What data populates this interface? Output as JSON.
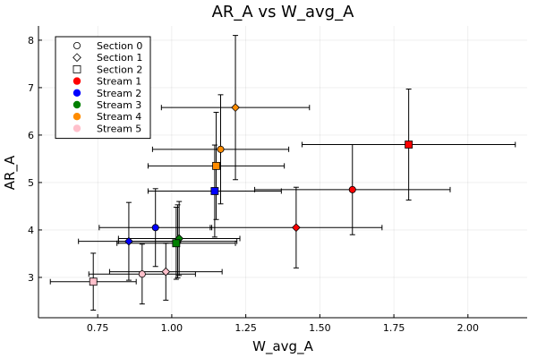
{
  "chart_data": {
    "type": "scatter",
    "title": "AR_A vs W_avg_A",
    "xlabel": "W_avg_A",
    "ylabel": "AR_A",
    "xlim": [
      0.55,
      2.2
    ],
    "ylim": [
      2.15,
      8.3
    ],
    "xticks": [
      0.75,
      1.0,
      1.25,
      1.5,
      1.75,
      2.0
    ],
    "xtick_labels": [
      "0.75",
      "1.00",
      "1.25",
      "1.50",
      "1.75",
      "2.00"
    ],
    "yticks": [
      3,
      4,
      5,
      6,
      7,
      8
    ],
    "ytick_labels": [
      "3",
      "4",
      "5",
      "6",
      "7",
      "8"
    ],
    "grid": true,
    "legend_position": "top-left",
    "legend": [
      {
        "label": "Section 0",
        "kind": "shape",
        "shape": "circle"
      },
      {
        "label": "Section 1",
        "kind": "shape",
        "shape": "diamond"
      },
      {
        "label": "Section 2",
        "kind": "shape",
        "shape": "square"
      },
      {
        "label": "Stream 1",
        "kind": "color",
        "color": "#ff0000"
      },
      {
        "label": "Stream 2",
        "kind": "color",
        "color": "#0000ff"
      },
      {
        "label": "Stream 3",
        "kind": "color",
        "color": "#008000"
      },
      {
        "label": "Stream 4",
        "kind": "color",
        "color": "#ff8c00"
      },
      {
        "label": "Stream 5",
        "kind": "color",
        "color": "#ffc0cb"
      }
    ],
    "points": [
      {
        "stream": "Stream 1",
        "section": "Section 0",
        "color": "#ff0000",
        "shape": "circle",
        "x": 1.61,
        "y": 4.85,
        "xerr": 0.33,
        "yerr": 0.95
      },
      {
        "stream": "Stream 1",
        "section": "Section 1",
        "color": "#ff0000",
        "shape": "diamond",
        "x": 1.42,
        "y": 4.05,
        "xerr": 0.29,
        "yerr": 0.85
      },
      {
        "stream": "Stream 1",
        "section": "Section 2",
        "color": "#ff0000",
        "shape": "square",
        "x": 1.8,
        "y": 5.8,
        "xerr": 0.36,
        "yerr": 1.17
      },
      {
        "stream": "Stream 2",
        "section": "Section 0",
        "color": "#0000ff",
        "shape": "circle",
        "x": 0.945,
        "y": 4.05,
        "xerr": 0.19,
        "yerr": 0.82
      },
      {
        "stream": "Stream 2",
        "section": "Section 1",
        "color": "#0000ff",
        "shape": "diamond",
        "x": 0.855,
        "y": 3.76,
        "xerr": 0.17,
        "yerr": 0.82
      },
      {
        "stream": "Stream 2",
        "section": "Section 2",
        "color": "#0000ff",
        "shape": "square",
        "x": 1.145,
        "y": 4.82,
        "xerr": 0.225,
        "yerr": 0.97
      },
      {
        "stream": "Stream 3",
        "section": "Section 0",
        "color": "#008000",
        "shape": "circle",
        "x": 1.02,
        "y": 3.76,
        "xerr": 0.2,
        "yerr": 0.77
      },
      {
        "stream": "Stream 3",
        "section": "Section 1",
        "color": "#008000",
        "shape": "diamond",
        "x": 1.025,
        "y": 3.82,
        "xerr": 0.205,
        "yerr": 0.78
      },
      {
        "stream": "Stream 3",
        "section": "Section 2",
        "color": "#008000",
        "shape": "square",
        "x": 1.015,
        "y": 3.72,
        "xerr": 0.2,
        "yerr": 0.76
      },
      {
        "stream": "Stream 4",
        "section": "Section 0",
        "color": "#ff8c00",
        "shape": "circle",
        "x": 1.165,
        "y": 5.7,
        "xerr": 0.23,
        "yerr": 1.15
      },
      {
        "stream": "Stream 4",
        "section": "Section 1",
        "color": "#ff8c00",
        "shape": "diamond",
        "x": 1.215,
        "y": 6.58,
        "xerr": 0.25,
        "yerr": 1.52
      },
      {
        "stream": "Stream 4",
        "section": "Section 2",
        "color": "#ff8c00",
        "shape": "square",
        "x": 1.15,
        "y": 5.35,
        "xerr": 0.23,
        "yerr": 1.13
      },
      {
        "stream": "Stream 5",
        "section": "Section 0",
        "color": "#ffc0cb",
        "shape": "circle",
        "x": 0.9,
        "y": 3.07,
        "xerr": 0.18,
        "yerr": 0.63
      },
      {
        "stream": "Stream 5",
        "section": "Section 1",
        "color": "#ffc0cb",
        "shape": "diamond",
        "x": 0.98,
        "y": 3.12,
        "xerr": 0.19,
        "yerr": 0.6
      },
      {
        "stream": "Stream 5",
        "section": "Section 2",
        "color": "#ffc0cb",
        "shape": "square",
        "x": 0.735,
        "y": 2.91,
        "xerr": 0.145,
        "yerr": 0.6
      }
    ]
  }
}
